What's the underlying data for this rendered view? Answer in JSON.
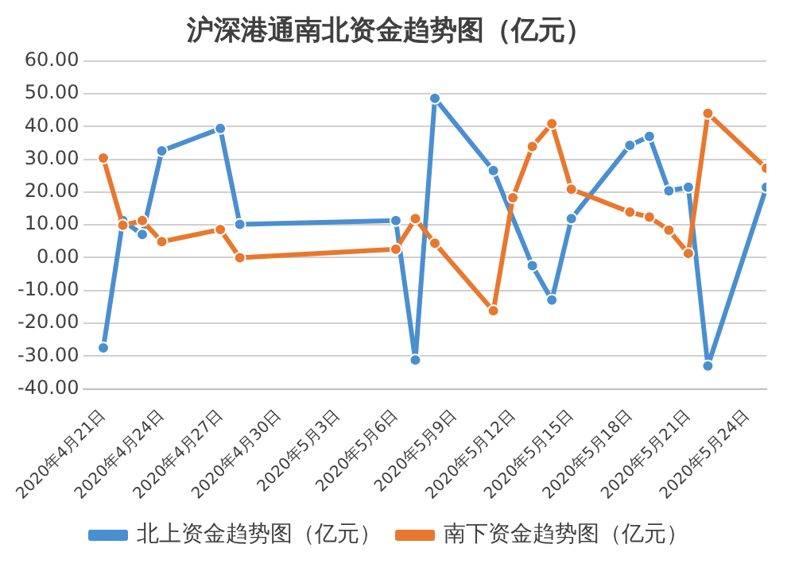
{
  "chart_data": {
    "type": "line",
    "title": "沪深港通南北资金趋势图（亿元）",
    "x": [
      "2020-04-21",
      "2020-04-22",
      "2020-04-23",
      "2020-04-24",
      "2020-04-27",
      "2020-04-28",
      "2020-05-06",
      "2020-05-07",
      "2020-05-08",
      "2020-05-11",
      "2020-05-12",
      "2020-05-13",
      "2020-05-14",
      "2020-05-15",
      "2020-05-18",
      "2020-05-19",
      "2020-05-20",
      "2020-05-21",
      "2020-05-22",
      "2020-05-25"
    ],
    "series": [
      {
        "name": "北上资金趋势图（亿元）",
        "color": "#4a8fd0",
        "values": [
          -27.5,
          11.3,
          7.1,
          32.6,
          39.4,
          10.2,
          11.3,
          -31.2,
          48.6,
          26.6,
          null,
          -2.4,
          -12.9,
          11.9,
          34.3,
          37.0,
          20.4,
          21.5,
          -33.0,
          21.5
        ]
      },
      {
        "name": "南下资金趋势图（亿元）",
        "color": "#e8782e",
        "values": [
          30.4,
          9.9,
          11.3,
          4.9,
          8.6,
          0,
          2.6,
          11.9,
          4.4,
          -16.2,
          18.3,
          33.9,
          40.9,
          20.9,
          13.9,
          12.4,
          8.4,
          1.3,
          44.0,
          27.3
        ]
      }
    ],
    "xlim": [
      "2020-04-20",
      "2020-05-25"
    ],
    "xticks": [
      {
        "value": "2020-04-21",
        "label": "2020年4月21日"
      },
      {
        "value": "2020-04-24",
        "label": "2020年4月24日"
      },
      {
        "value": "2020-04-27",
        "label": "2020年4月27日"
      },
      {
        "value": "2020-04-30",
        "label": "2020年4月30日"
      },
      {
        "value": "2020-05-03",
        "label": "2020年5月3日"
      },
      {
        "value": "2020-05-06",
        "label": "2020年5月6日"
      },
      {
        "value": "2020-05-09",
        "label": "2020年5月9日"
      },
      {
        "value": "2020-05-12",
        "label": "2020年5月12日"
      },
      {
        "value": "2020-05-15",
        "label": "2020年5月15日"
      },
      {
        "value": "2020-05-18",
        "label": "2020年5月18日"
      },
      {
        "value": "2020-05-21",
        "label": "2020年5月21日"
      },
      {
        "value": "2020-05-24",
        "label": "2020年5月24日"
      }
    ],
    "ylim": [
      -40,
      60
    ],
    "yticks": [
      {
        "value": -40,
        "label": "-40.00"
      },
      {
        "value": -30,
        "label": "-30.00"
      },
      {
        "value": -20,
        "label": "-20.00"
      },
      {
        "value": -10,
        "label": "-10.00"
      },
      {
        "value": 0,
        "label": "0.00"
      },
      {
        "value": 10,
        "label": "10.00"
      },
      {
        "value": 20,
        "label": "20.00"
      },
      {
        "value": 30,
        "label": "30.00"
      },
      {
        "value": 40,
        "label": "40.00"
      },
      {
        "value": 50,
        "label": "50.00"
      },
      {
        "value": 60,
        "label": "60.00"
      }
    ],
    "grid": "y",
    "legend": "bottom",
    "marker": "circle",
    "line_style": "solid"
  }
}
